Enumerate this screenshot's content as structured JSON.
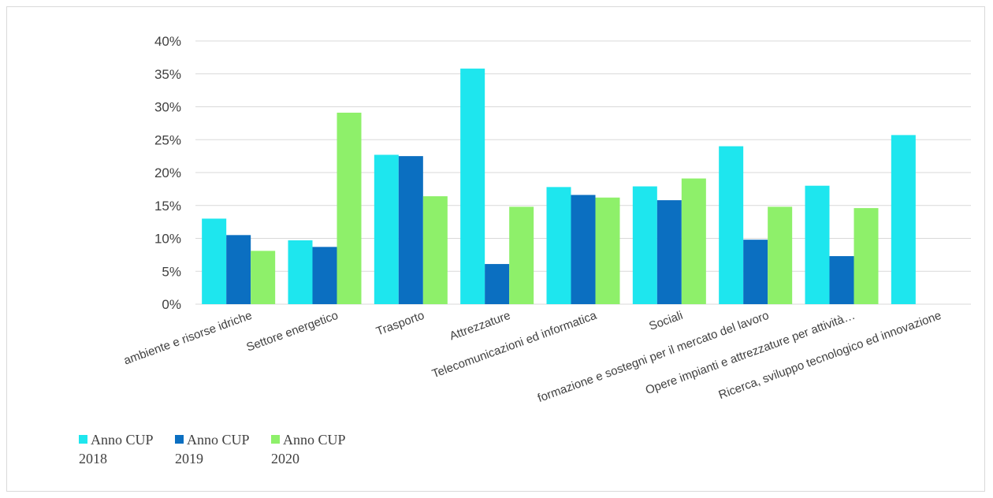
{
  "chart_data": {
    "type": "bar",
    "categories": [
      "ambiente e risorse idriche",
      "Settore energetico",
      "Trasporto",
      "Attrezzature",
      "Telecomunicazioni ed informatica",
      "Sociali",
      "formazione e sostegni per il mercato del lavoro",
      "Opere impianti e attrezzature per attività…",
      "Ricerca, sviluppo tecnologico ed innovazione"
    ],
    "series": [
      {
        "name": "Anno CUP 2018",
        "color": "#1ee6ee",
        "values": [
          0.13,
          0.097,
          0.227,
          0.358,
          0.178,
          0.179,
          0.24,
          0.18,
          0.257
        ]
      },
      {
        "name": "Anno CUP 2019",
        "color": "#0b6fc1",
        "values": [
          0.105,
          0.087,
          0.225,
          0.061,
          0.166,
          0.158,
          0.098,
          0.073,
          null
        ]
      },
      {
        "name": "Anno CUP 2020",
        "color": "#8ef06a",
        "values": [
          0.081,
          0.291,
          0.164,
          0.148,
          0.162,
          0.191,
          0.148,
          0.146,
          null
        ]
      }
    ],
    "yticks": [
      "0%",
      "5%",
      "10%",
      "15%",
      "20%",
      "25%",
      "30%",
      "35%",
      "40%"
    ],
    "ylim": [
      0,
      0.4
    ],
    "grid": true,
    "legend_position": "bottom-left"
  }
}
